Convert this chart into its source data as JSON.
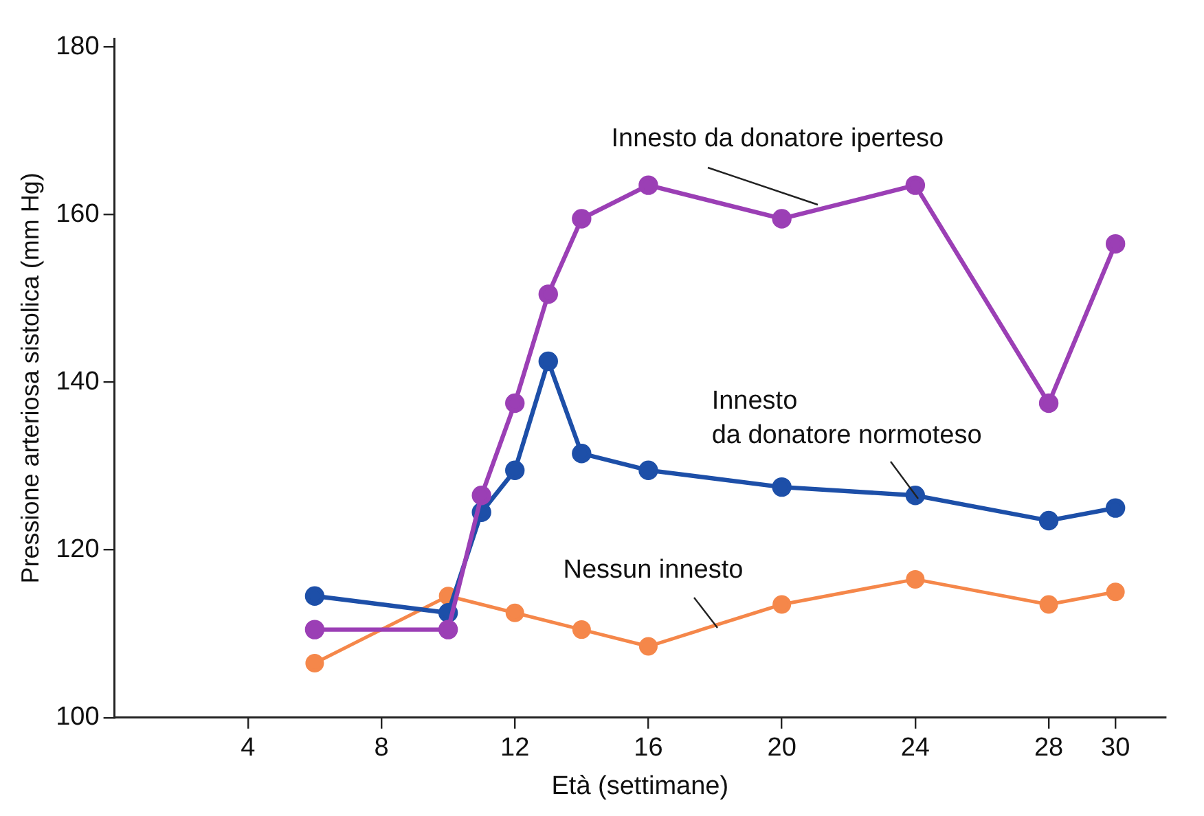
{
  "chart_data": {
    "type": "line",
    "xlabel": "Età (settimane)",
    "ylabel": "Pressione arteriosa sistolica (mm Hg)",
    "xlim": [
      0,
      31.5
    ],
    "ylim": [
      100,
      181
    ],
    "xticks": [
      4,
      8,
      12,
      16,
      20,
      24,
      28,
      30
    ],
    "yticks": [
      100,
      120,
      140,
      160,
      180
    ],
    "grid": false,
    "marker": "circle",
    "line_style": "solid",
    "series": [
      {
        "name": "Innesto da donatore iperteso",
        "color": "#9b3fb5",
        "x": [
          6,
          10,
          11,
          12,
          13,
          14,
          16,
          20,
          24,
          28,
          30
        ],
        "values": [
          110.5,
          110.5,
          126.5,
          137.5,
          150.5,
          159.5,
          163.5,
          159.5,
          163.5,
          137.5,
          156.5
        ]
      },
      {
        "name": "Innesto da donatore normoteso",
        "color": "#1d4fa8",
        "x": [
          6,
          10,
          11,
          12,
          13,
          14,
          16,
          20,
          24,
          28,
          30
        ],
        "values": [
          114.5,
          112.5,
          124.5,
          129.5,
          142.5,
          131.5,
          129.5,
          127.5,
          126.5,
          123.5,
          125
        ]
      },
      {
        "name": "Nessun innesto",
        "color": "#f5874a",
        "x": [
          6,
          10,
          12,
          14,
          16,
          20,
          24,
          28,
          30
        ],
        "values": [
          106.5,
          114.5,
          112.5,
          110.5,
          108.5,
          113.5,
          116.5,
          113.5,
          115
        ]
      }
    ]
  }
}
